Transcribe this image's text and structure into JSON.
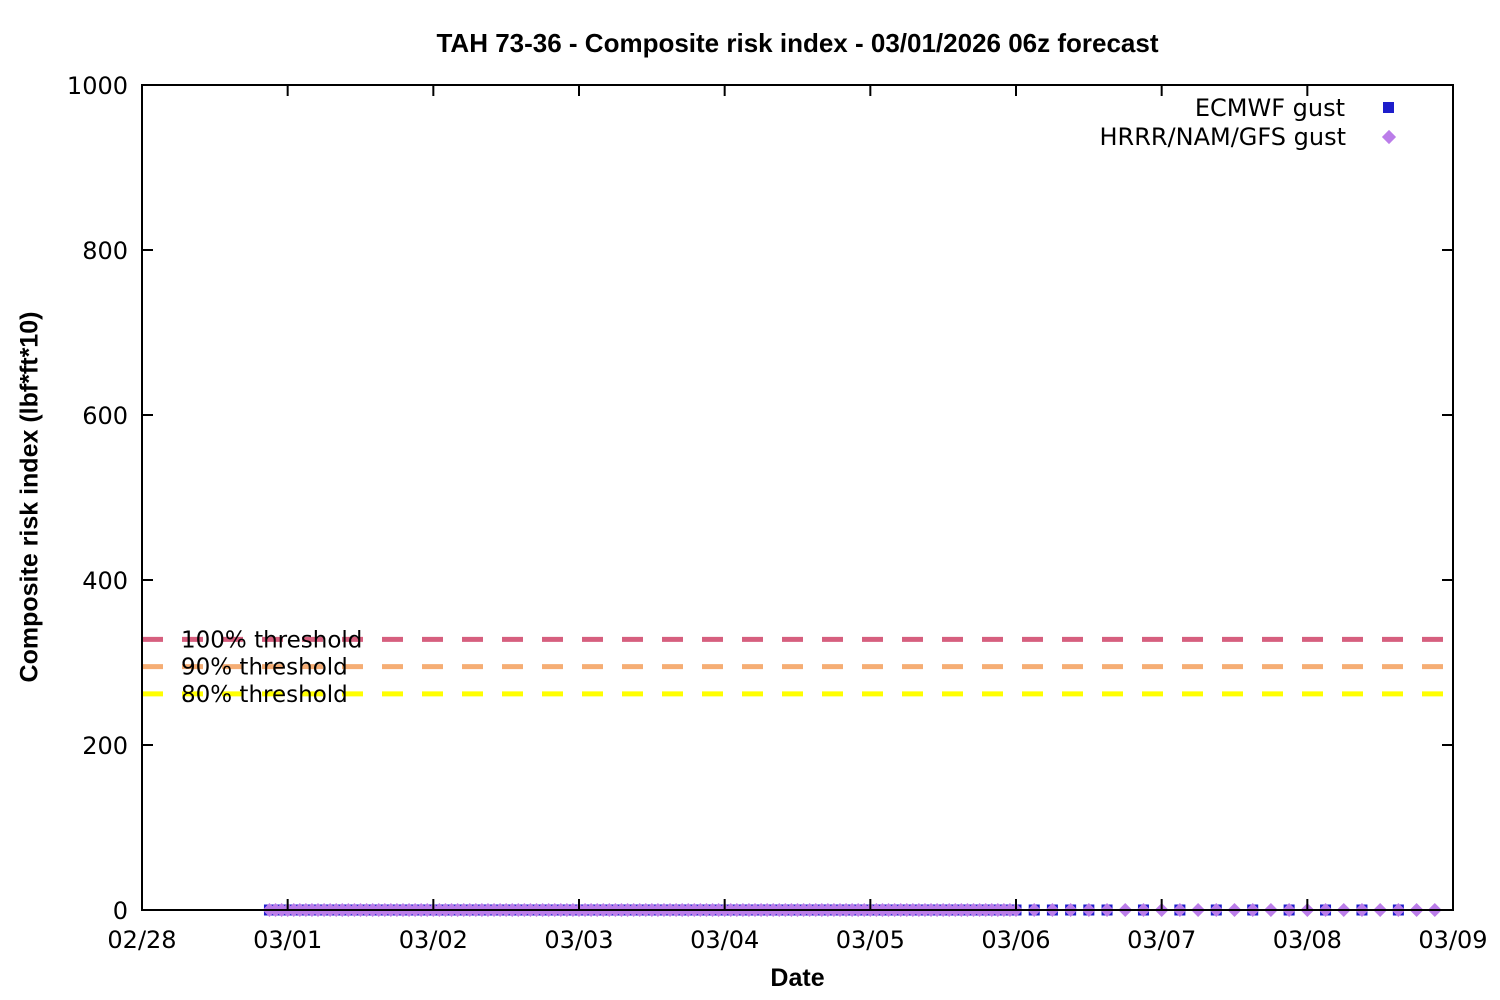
{
  "page": {
    "background": "#ffffff"
  },
  "chart_data": {
    "type": "scatter",
    "title": "TAH 73-36 - Composite risk index - 03/01/2026 06z forecast",
    "xlabel": "Date",
    "ylabel": "Composite risk index (lbf*ft*10)",
    "grid": false,
    "ylim": [
      0,
      1000
    ],
    "yticks": [
      0,
      200,
      400,
      600,
      800,
      1000
    ],
    "x_axis": {
      "tick_labels": [
        "02/28",
        "03/01",
        "03/02",
        "03/03",
        "03/04",
        "03/05",
        "03/06",
        "03/07",
        "03/08",
        "03/09"
      ],
      "span_hours": 216,
      "hours_origin": "02/28 00:00"
    },
    "legend": {
      "position": "top-right-inside"
    },
    "thresholds": [
      {
        "label": "100% threshold",
        "percent": 100,
        "value": 328,
        "color": "#d65f7e",
        "style": "dashed"
      },
      {
        "label": "90% threshold",
        "percent": 90,
        "value": 295,
        "color": "#f5ad74",
        "style": "dashed"
      },
      {
        "label": "80% threshold",
        "percent": 80,
        "value": 262,
        "color": "#ffff00",
        "style": "dashed"
      }
    ],
    "series": [
      {
        "name": "ECMWF gust",
        "marker": "square",
        "color": "#1e1ecb",
        "y_value_all_points": 0,
        "x_hours_since_origin": {
          "ranges_start_end_step": [
            [
              21,
              144,
              1
            ],
            [
              147,
              159,
              3
            ],
            [
              165,
              207,
              6
            ]
          ]
        }
      },
      {
        "name": "HRRR/NAM/GFS gust",
        "marker": "diamond",
        "color": "#bb7de9",
        "y_value_all_points": 0,
        "x_hours_since_origin": {
          "ranges_start_end_step": [
            [
              21,
              144,
              1
            ],
            [
              147,
              213,
              3
            ]
          ]
        }
      }
    ]
  }
}
